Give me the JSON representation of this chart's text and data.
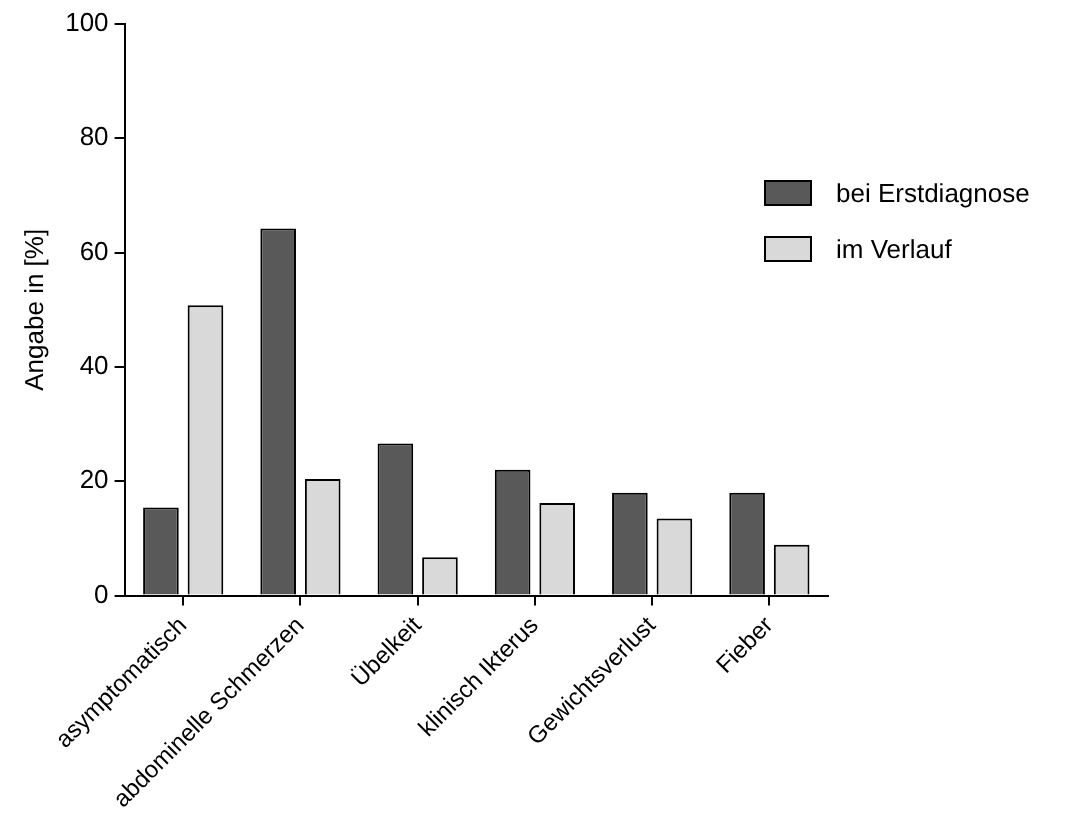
{
  "chart_data": {
    "type": "bar",
    "ylabel": "Angabe in [%]",
    "categories": [
      "asymptomatisch",
      "abdominelle Schmerzen",
      "Übelkeit",
      "klinisch Ikterus",
      "Gewichtsverlust",
      "Fieber"
    ],
    "series": [
      {
        "name": "bei Erstdiagnose",
        "color": "#595959",
        "values": [
          15.4,
          64.2,
          26.6,
          22.0,
          18.0,
          18.0
        ]
      },
      {
        "name": "im Verlauf",
        "color": "#d9d9d9",
        "values": [
          50.8,
          20.4,
          6.7,
          16.2,
          13.5,
          8.9
        ]
      }
    ],
    "ylim": [
      0,
      100
    ],
    "yticks": [
      0,
      20,
      40,
      60,
      80,
      100
    ],
    "grid": false,
    "legend": "right"
  }
}
